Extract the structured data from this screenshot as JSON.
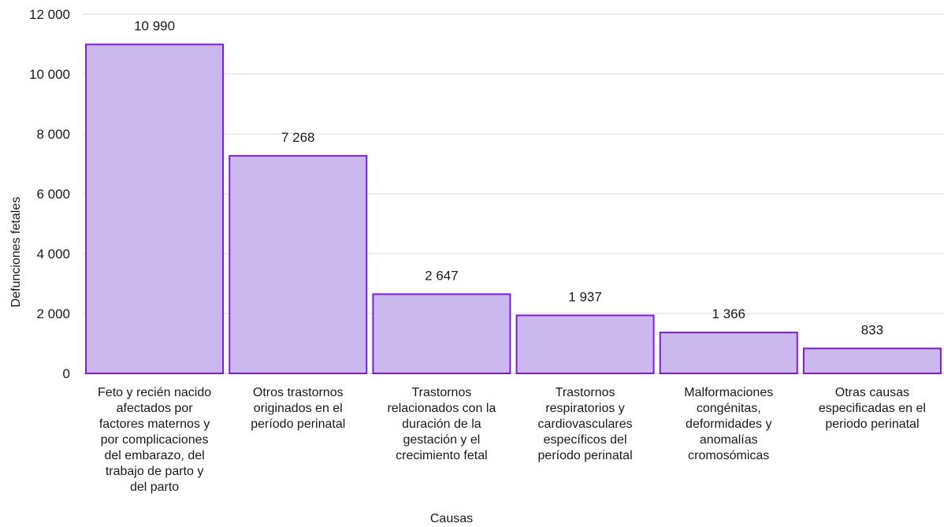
{
  "chart_data": {
    "type": "bar",
    "categories": [
      [
        "Feto y recién nacido",
        "afectados por",
        "factores maternos y",
        "por complicaciones",
        "del embarazo, del",
        "trabajo de parto y",
        "del parto"
      ],
      [
        "Otros trastornos",
        "originados en el",
        "período perinatal"
      ],
      [
        "Trastornos",
        "relacionados con la",
        "duración de la",
        "gestación y el",
        "crecimiento fetal"
      ],
      [
        "Trastornos",
        "respiratorios y",
        "cardiovasculares",
        "específicos del",
        "período perinatal"
      ],
      [
        "Malformaciones",
        "congénitas,",
        "deformidades y",
        "anomalías",
        "cromosómicas"
      ],
      [
        "Otras causas",
        "especificadas en el",
        "periodo perinatal"
      ]
    ],
    "values": [
      10990,
      7268,
      2647,
      1937,
      1366,
      833
    ],
    "value_labels": [
      "10 990",
      "7 268",
      "2 647",
      "1 937",
      "1 366",
      "833"
    ],
    "y_ticks": [
      0,
      2000,
      4000,
      6000,
      8000,
      10000,
      12000
    ],
    "y_tick_labels": [
      "0",
      "2 000",
      "4 000",
      "6 000",
      "8 000",
      "10 000",
      "12 000"
    ],
    "ylim": [
      0,
      12000
    ],
    "xlabel": "Causas",
    "ylabel": "Defunciones fetales",
    "grid": true,
    "colors": {
      "bar_fill": "#cbb8ee",
      "bar_stroke": "#7a1fd1"
    }
  }
}
